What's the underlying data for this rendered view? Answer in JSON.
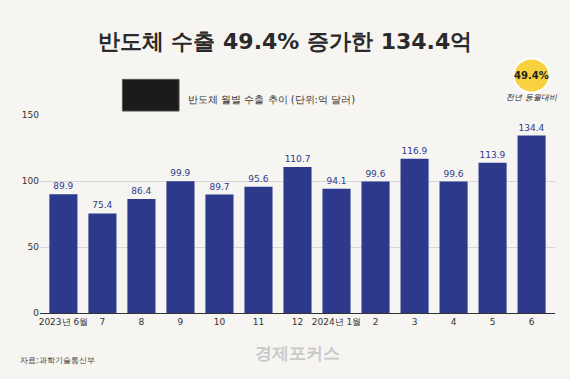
{
  "chart_data": {
    "type": "bar",
    "title": "반도체 수출 49.4% 증가한 134.4억",
    "subtitle": "반도체 월별 수출 추이 (단위:억 달러)",
    "annotations": [
      "49.4%",
      "전년 동월대비"
    ],
    "source": "자료:과학기술통신부",
    "logo": "경제포커스",
    "categories": [
      "2023년 6월",
      "7",
      "8",
      "9",
      "10",
      "11",
      "12",
      "2024년 1월",
      "2",
      "3",
      "4",
      "5",
      "6"
    ],
    "values": [
      89.9,
      75.4,
      86.4,
      99.9,
      89.7,
      95.6,
      110.7,
      94.1,
      99.6,
      116.9,
      99.6,
      113.9,
      134.4
    ],
    "color": "#2d3a8c",
    "ylim": [
      0,
      150
    ],
    "yticks": [
      0,
      50,
      100,
      150
    ],
    "grid": true,
    "data_labels": true
  }
}
